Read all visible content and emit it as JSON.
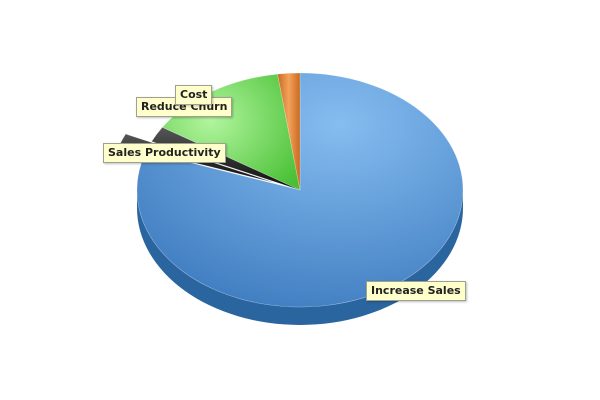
{
  "chart_data": {
    "type": "pie",
    "title": "",
    "slices": [
      {
        "label": "Increase Sales",
        "value": 80.3,
        "color": "#4f8fd0"
      },
      {
        "label": "Sales Productivity",
        "value": 1.5,
        "color": "#2a2a2a"
      },
      {
        "label": "Reduce Churn",
        "value": 2.2,
        "color": "#1a1a1a"
      },
      {
        "label": "Cost",
        "value": 13.8,
        "color": "#62d24f"
      },
      {
        "label": "",
        "value": 2.2,
        "color": "#e7893b"
      }
    ],
    "legend": "none",
    "style": "3d"
  }
}
